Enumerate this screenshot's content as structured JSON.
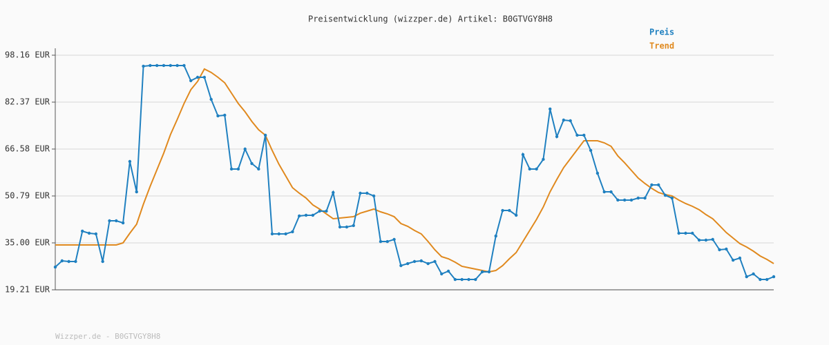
{
  "chart_data": {
    "type": "line",
    "title": "Preisentwicklung (wizzper.de) Artikel: B0GTVGY8H8",
    "footer": "Wizzper.de - B0GTVGY8H8",
    "ylim": [
      19.21,
      98.16
    ],
    "yticks": [
      {
        "value": 19.21,
        "label": "19.21 EUR"
      },
      {
        "value": 35.0,
        "label": "35.00 EUR"
      },
      {
        "value": 50.79,
        "label": "50.79 EUR"
      },
      {
        "value": 66.58,
        "label": "66.58 EUR"
      },
      {
        "value": 82.37,
        "label": "82.37 EUR"
      },
      {
        "value": 98.16,
        "label": "98.16 EUR"
      }
    ],
    "grid": true,
    "legend": "top-right",
    "series": [
      {
        "name": "Preis",
        "color": "#1f80c0",
        "markers": true,
        "values": [
          26.87,
          28.96,
          28.73,
          28.73,
          38.95,
          38.25,
          38.02,
          28.73,
          42.43,
          42.43,
          41.73,
          62.4,
          52.18,
          94.45,
          94.68,
          94.68,
          94.68,
          94.68,
          94.68,
          94.68,
          89.57,
          90.73,
          90.73,
          83.3,
          77.73,
          77.96,
          59.85,
          59.85,
          66.58,
          61.7,
          59.85,
          71.23,
          38.02,
          38.02,
          38.02,
          38.72,
          44.06,
          44.29,
          44.29,
          45.68,
          45.68,
          51.95,
          40.34,
          40.34,
          40.81,
          51.72,
          51.72,
          50.79,
          35.46,
          35.46,
          36.16,
          27.34,
          28.03,
          28.73,
          28.96,
          28.03,
          28.73,
          24.55,
          25.48,
          22.69,
          22.69,
          22.69,
          22.69,
          25.25,
          25.25,
          37.32,
          45.91,
          45.91,
          44.29,
          64.72,
          59.85,
          59.85,
          63.1,
          80.05,
          70.76,
          76.33,
          76.1,
          71.23,
          71.23,
          66.12,
          58.45,
          52.18,
          52.18,
          49.4,
          49.4,
          49.4,
          50.09,
          50.09,
          54.51,
          54.51,
          51.02,
          50.09,
          38.25,
          38.25,
          38.25,
          35.93,
          35.93,
          36.16,
          32.68,
          32.91,
          29.19,
          29.89,
          23.62,
          24.55,
          22.69,
          22.69,
          23.62
        ]
      },
      {
        "name": "Trend",
        "color": "#e0891e",
        "markers": false,
        "values": [
          34.3,
          34.3,
          34.3,
          34.3,
          34.3,
          34.3,
          34.3,
          34.3,
          34.3,
          34.3,
          35.0,
          38.25,
          41.27,
          48.0,
          54.04,
          59.61,
          65.19,
          71.46,
          76.57,
          81.91,
          86.55,
          89.34,
          93.52,
          92.36,
          90.73,
          88.87,
          85.39,
          81.91,
          79.12,
          75.87,
          73.08,
          71.23,
          66.12,
          61.47,
          57.52,
          53.58,
          51.72,
          50.09,
          47.77,
          46.38,
          44.75,
          43.13,
          43.36,
          43.59,
          43.82,
          44.99,
          45.68,
          46.38,
          45.45,
          44.75,
          43.82,
          41.5,
          40.57,
          39.18,
          38.02,
          35.46,
          32.68,
          30.36,
          29.66,
          28.5,
          27.11,
          26.64,
          26.18,
          25.71,
          25.25,
          25.71,
          27.34,
          29.66,
          31.75,
          35.46,
          39.18,
          42.9,
          47.08,
          52.18,
          56.36,
          60.31,
          63.33,
          66.35,
          69.37,
          69.37,
          69.37,
          68.67,
          67.51,
          64.26,
          61.94,
          59.38,
          56.83,
          54.97,
          53.34,
          51.95,
          51.25,
          50.79,
          49.4,
          48.24,
          47.31,
          46.15,
          44.52,
          43.13,
          40.81,
          38.48,
          36.63,
          34.77,
          33.61,
          32.21,
          30.59,
          29.43,
          28.03
        ]
      }
    ]
  }
}
